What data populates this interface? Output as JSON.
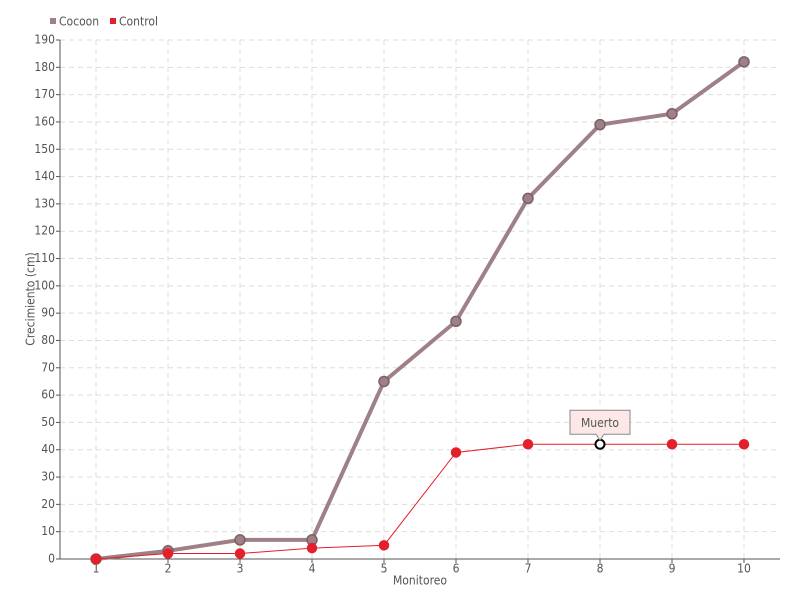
{
  "chart_data": {
    "type": "line",
    "x_label": "Monitoreo",
    "y_label": "Crecimiento (cm)",
    "categories": [
      "1",
      "2",
      "3",
      "4",
      "5",
      "6",
      "7",
      "8",
      "9",
      "10"
    ],
    "series": [
      {
        "name": "Cocoon",
        "color": "#9e8086",
        "values": [
          0,
          3,
          7,
          7,
          65,
          87,
          132,
          159,
          163,
          182
        ]
      },
      {
        "name": "Control",
        "color": "#e3202b",
        "values": [
          0,
          2,
          2,
          4,
          5,
          39,
          42,
          42,
          42,
          42
        ]
      }
    ],
    "ylim": [
      0,
      190
    ],
    "yticks": [
      0,
      10,
      20,
      30,
      40,
      50,
      60,
      70,
      80,
      90,
      100,
      110,
      120,
      130,
      140,
      150,
      160,
      170,
      180,
      190
    ],
    "grid": true,
    "legend": "top-left",
    "annotation": {
      "text": "Muerto"
    }
  }
}
